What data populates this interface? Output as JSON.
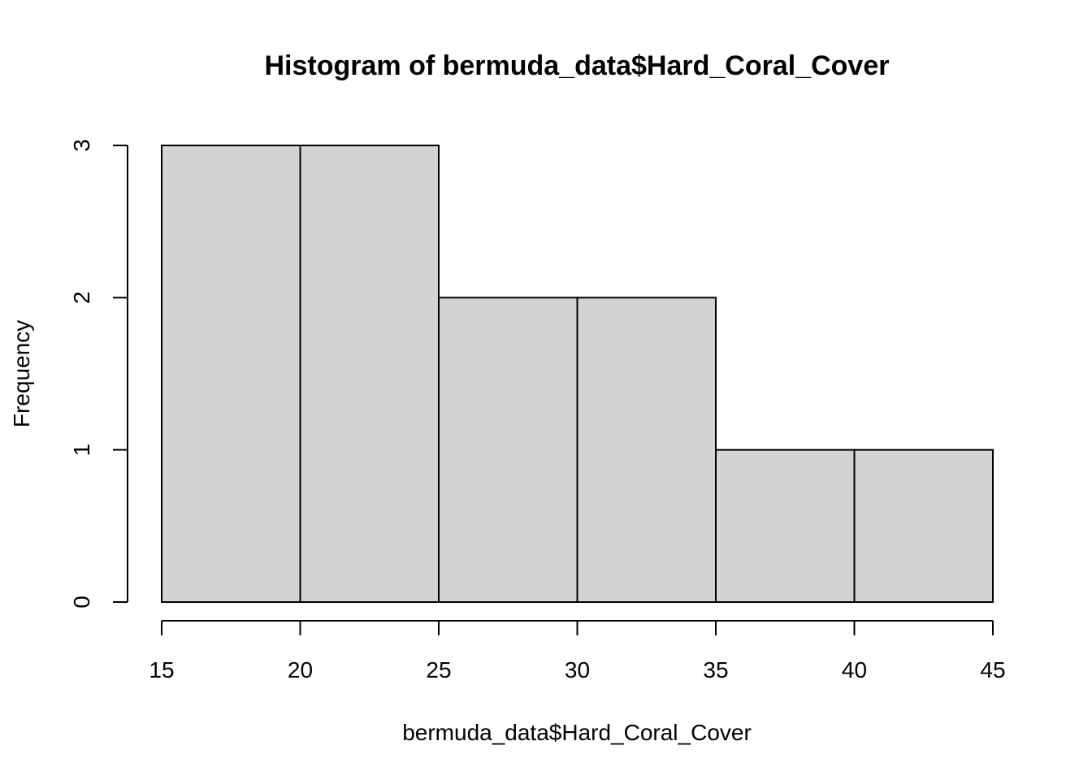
{
  "chart_data": {
    "type": "bar",
    "title": "Histogram of bermuda_data$Hard_Coral_Cover",
    "xlabel": "bermuda_data$Hard_Coral_Cover",
    "ylabel": "Frequency",
    "bins": [
      {
        "start": 15,
        "end": 20,
        "count": 3
      },
      {
        "start": 20,
        "end": 25,
        "count": 3
      },
      {
        "start": 25,
        "end": 30,
        "count": 2
      },
      {
        "start": 30,
        "end": 35,
        "count": 2
      },
      {
        "start": 35,
        "end": 40,
        "count": 1
      },
      {
        "start": 40,
        "end": 45,
        "count": 1
      }
    ],
    "x_ticks": [
      15,
      20,
      25,
      30,
      35,
      40,
      45
    ],
    "y_ticks": [
      0,
      1,
      2,
      3
    ],
    "xlim": [
      15,
      45
    ],
    "ylim": [
      0,
      3
    ],
    "colors": {
      "bar_fill": "#d3d3d3",
      "bar_stroke": "#000000"
    },
    "grid": false
  }
}
